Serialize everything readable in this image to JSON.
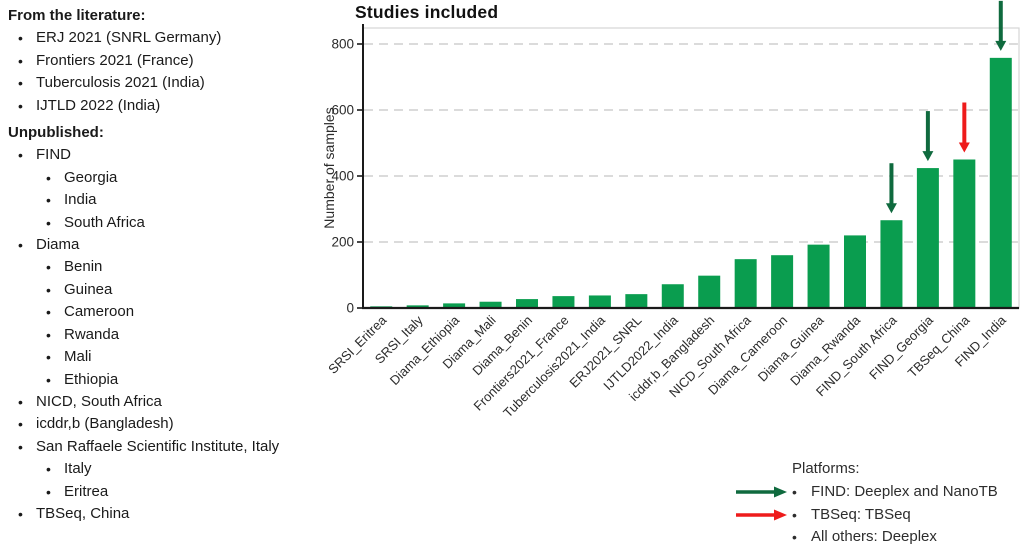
{
  "left_panel": {
    "items": [
      {
        "level": 0,
        "text": "From the literature:"
      },
      {
        "level": 1,
        "text": "ERJ 2021 (SNRL Germany)"
      },
      {
        "level": 1,
        "text": "Frontiers 2021 (France)"
      },
      {
        "level": 1,
        "text": "Tuberculosis 2021 (India)"
      },
      {
        "level": 1,
        "text": "IJTLD 2022 (India)"
      },
      {
        "level": 0,
        "text": "Unpublished:"
      },
      {
        "level": 1,
        "text": "FIND"
      },
      {
        "level": 2,
        "text": "Georgia"
      },
      {
        "level": 2,
        "text": "India"
      },
      {
        "level": 2,
        "text": "South Africa"
      },
      {
        "level": 1,
        "text": "Diama"
      },
      {
        "level": 2,
        "text": "Benin"
      },
      {
        "level": 2,
        "text": "Guinea"
      },
      {
        "level": 2,
        "text": "Cameroon"
      },
      {
        "level": 2,
        "text": "Rwanda"
      },
      {
        "level": 2,
        "text": "Mali"
      },
      {
        "level": 2,
        "text": "Ethiopia"
      },
      {
        "level": 1,
        "text": "NICD, South Africa"
      },
      {
        "level": 1,
        "text": "icddr,b (Bangladesh)"
      },
      {
        "level": 1,
        "text": "San Raffaele Scientific Institute, Italy"
      },
      {
        "level": 2,
        "text": "Italy"
      },
      {
        "level": 2,
        "text": "Eritrea"
      },
      {
        "level": 1,
        "text": "TBSeq, China"
      }
    ]
  },
  "chart_data": {
    "type": "bar",
    "title": "Studies included",
    "xlabel": "",
    "ylabel": "Number of samples",
    "ylim": [
      0,
      840
    ],
    "yticks": [
      0,
      200,
      400,
      600,
      800
    ],
    "grid": "horizontal-dashed",
    "legend_position": "bottom-right",
    "bar_color": "#0a9d4f",
    "categories": [
      "SRSI_Eritrea",
      "SRSI_Italy",
      "Diama_Ethiopia",
      "Diama_Mali",
      "Diama_Benin",
      "Frontiers2021_France",
      "Tuberculosis2021_India",
      "ERJ2021_SNRL",
      "IJTLD2022_India",
      "icddr,b_Bangladesh",
      "NICD_South Africa",
      "Diama_Cameroon",
      "Diama_Guinea",
      "Diama_Rwanda",
      "FIND_South Africa",
      "FIND_Georgia",
      "TBSeq_China",
      "FIND_India"
    ],
    "values": [
      5,
      8,
      14,
      19,
      27,
      36,
      38,
      42,
      72,
      98,
      148,
      160,
      192,
      220,
      266,
      424,
      450,
      758
    ],
    "annotations": [
      {
        "category": "FIND_South Africa",
        "type": "arrow-down",
        "color": "#0f6a3e"
      },
      {
        "category": "FIND_Georgia",
        "type": "arrow-down",
        "color": "#0f6a3e"
      },
      {
        "category": "TBSeq_China",
        "type": "arrow-down",
        "color": "#ee1b1b"
      },
      {
        "category": "FIND_India",
        "type": "arrow-down",
        "color": "#0f6a3e"
      }
    ],
    "colors": {
      "axis": "#1a1a1a",
      "grid": "#cfcfcf",
      "border": "#d6d6d6",
      "tick_text": "#2b2b2b",
      "label_text": "#2b2b2b"
    }
  },
  "legend": {
    "title": "Platforms:",
    "items": [
      {
        "label": "FIND: Deeplex and NanoTB",
        "arrow_color": "#0f6a3e"
      },
      {
        "label": "TBSeq: TBSeq",
        "arrow_color": "#ee1b1b"
      },
      {
        "label": "All others: Deeplex",
        "arrow_color": null
      }
    ]
  }
}
